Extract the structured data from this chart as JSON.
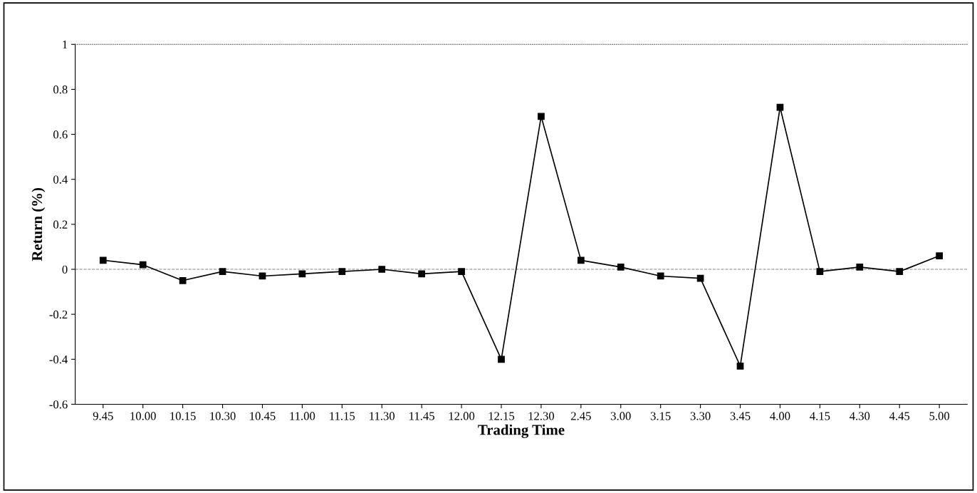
{
  "chart_data": {
    "type": "line",
    "xlabel": "Trading Time",
    "ylabel": "Return (%)",
    "categories": [
      "9.45",
      "10.00",
      "10.15",
      "10.30",
      "10.45",
      "11.00",
      "11.15",
      "11.30",
      "11.45",
      "12.00",
      "12.15",
      "12.30",
      "2.45",
      "3.00",
      "3.15",
      "3.30",
      "3.45",
      "4.00",
      "4.15",
      "4.30",
      "4.45",
      "5.00"
    ],
    "series": [
      {
        "color": "#000000",
        "values": [
          0.04,
          0.02,
          -0.05,
          -0.01,
          -0.03,
          -0.02,
          -0.01,
          0.0,
          -0.02,
          -0.01,
          -0.4,
          0.68,
          0.04,
          0.01,
          -0.03,
          -0.04,
          -0.43,
          0.72,
          -0.01,
          0.01,
          -0.01,
          0.06
        ]
      }
    ],
    "ylim": [
      -0.6,
      1
    ],
    "yticks": [
      {
        "value": -0.6,
        "label": "-0.6"
      },
      {
        "value": -0.4,
        "label": "-0.4"
      },
      {
        "value": -0.2,
        "label": "-0.2"
      },
      0,
      {
        "value": 0.2,
        "label": "0.2"
      },
      {
        "value": 0.4,
        "label": "0.4"
      },
      {
        "value": 0.6,
        "label": "0.6"
      },
      {
        "value": 0.8,
        "label": "0.8"
      },
      1
    ],
    "ref_lines": [
      {
        "axis": "y",
        "value": 0,
        "color": "#888888",
        "line_style": "dashed"
      }
    ],
    "marker": "square",
    "line_style": "solid",
    "grid": false,
    "legend": false
  }
}
